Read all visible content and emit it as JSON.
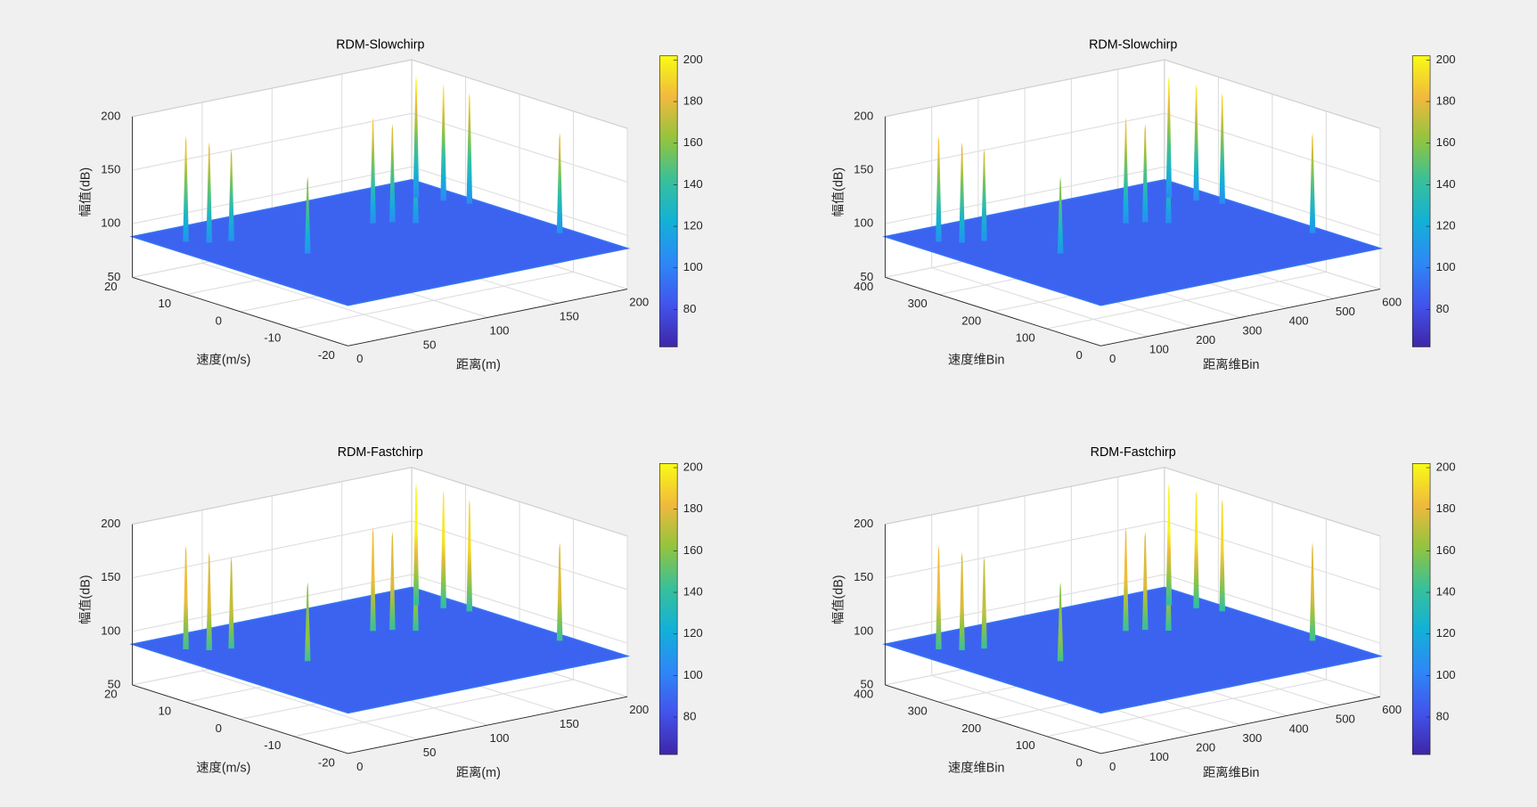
{
  "chart_data": [
    {
      "type": "surface3d",
      "title": "RDM-Slowchirp",
      "xlabel": "距离(m)",
      "ylabel": "速度(m/s)",
      "zlabel": "幅值(dB)",
      "xlim": [
        0,
        200
      ],
      "xticks": [
        0,
        50,
        100,
        150,
        200
      ],
      "ylim": [
        -20,
        20
      ],
      "yticks": [
        -20,
        -10,
        0,
        10,
        20
      ],
      "zlim": [
        50,
        200
      ],
      "zticks": [
        50,
        100,
        150,
        200
      ],
      "grid": true,
      "floor": 88,
      "peaks": {
        "x": [
          19,
          28,
          40,
          56,
          126,
          136,
          145,
          180,
          188,
          195,
          194
        ],
        "y": [
          15,
          13,
          12,
          2,
          8,
          7,
          5,
          14,
          11,
          8,
          -9
        ],
        "z": [
          185,
          180,
          172,
          158,
          185,
          178,
          170,
          200,
          195,
          190,
          180
        ]
      },
      "colormap": [
        "#3e26a8",
        "#4253ec",
        "#2e87f7",
        "#12b0d8",
        "#38c09a",
        "#93c43e",
        "#f0b93d",
        "#f9fb15"
      ],
      "clim": [
        62,
        202
      ],
      "cticks": [
        80,
        100,
        120,
        140,
        160,
        180,
        200
      ]
    },
    {
      "type": "surface3d",
      "title": "RDM-Slowchirp",
      "xlabel": "距离维Bin",
      "ylabel": "速度维Bin",
      "zlabel": "幅值(dB)",
      "xlim": [
        0,
        600
      ],
      "xticks": [
        0,
        100,
        200,
        300,
        400,
        500,
        600
      ],
      "ylim": [
        0,
        400
      ],
      "yticks": [
        0,
        100,
        200,
        300,
        400
      ],
      "zlim": [
        50,
        200
      ],
      "zticks": [
        50,
        100,
        150,
        200
      ],
      "grid": true,
      "floor": 88,
      "peaks": {
        "x": [
          57,
          84,
          120,
          168,
          378,
          408,
          435,
          540,
          564,
          585,
          582
        ],
        "y": [
          350,
          330,
          320,
          220,
          280,
          270,
          250,
          340,
          310,
          280,
          110
        ],
        "z": [
          185,
          180,
          172,
          158,
          185,
          178,
          170,
          200,
          195,
          190,
          180
        ]
      },
      "colormap": [
        "#3e26a8",
        "#4253ec",
        "#2e87f7",
        "#12b0d8",
        "#38c09a",
        "#93c43e",
        "#f0b93d",
        "#f9fb15"
      ],
      "clim": [
        62,
        202
      ],
      "cticks": [
        80,
        100,
        120,
        140,
        160,
        180,
        200
      ]
    },
    {
      "type": "surface3d",
      "title": "RDM-Fastchirp",
      "xlabel": "距离(m)",
      "ylabel": "速度(m/s)",
      "zlabel": "幅值(dB)",
      "xlim": [
        0,
        200
      ],
      "xticks": [
        0,
        50,
        100,
        150,
        200
      ],
      "ylim": [
        -20,
        20
      ],
      "yticks": [
        -20,
        -10,
        0,
        10,
        20
      ],
      "zlim": [
        50,
        200
      ],
      "zticks": [
        50,
        100,
        150,
        200
      ],
      "grid": true,
      "floor": 88,
      "peaks": {
        "x": [
          19,
          28,
          40,
          56,
          126,
          136,
          145,
          180,
          188,
          195,
          194
        ],
        "y": [
          15,
          13,
          12,
          2,
          8,
          7,
          5,
          14,
          11,
          8,
          -9
        ],
        "z": [
          183,
          178,
          172,
          160,
          183,
          178,
          170,
          200,
          196,
          191,
          178
        ]
      },
      "colormap": [
        "#3e26a8",
        "#4253ec",
        "#2e87f7",
        "#12b0d8",
        "#38c09a",
        "#93c43e",
        "#f0b93d",
        "#f9fb15"
      ],
      "clim": [
        62,
        202
      ],
      "cticks": [
        80,
        100,
        120,
        140,
        160,
        180,
        200
      ]
    },
    {
      "type": "surface3d",
      "title": "RDM-Fastchirp",
      "xlabel": "距离维Bin",
      "ylabel": "速度维Bin",
      "zlabel": "幅值(dB)",
      "xlim": [
        0,
        600
      ],
      "xticks": [
        0,
        100,
        200,
        300,
        400,
        500,
        600
      ],
      "ylim": [
        0,
        400
      ],
      "yticks": [
        0,
        100,
        200,
        300,
        400
      ],
      "zlim": [
        50,
        200
      ],
      "zticks": [
        50,
        100,
        150,
        200
      ],
      "grid": true,
      "floor": 88,
      "peaks": {
        "x": [
          57,
          84,
          120,
          168,
          378,
          408,
          435,
          540,
          564,
          585,
          582
        ],
        "y": [
          350,
          330,
          320,
          220,
          280,
          270,
          250,
          340,
          310,
          280,
          110
        ],
        "z": [
          183,
          178,
          172,
          160,
          183,
          178,
          170,
          200,
          196,
          191,
          178
        ]
      },
      "colormap": [
        "#3e26a8",
        "#4253ec",
        "#2e87f7",
        "#12b0d8",
        "#38c09a",
        "#93c43e",
        "#f0b93d",
        "#f9fb15"
      ],
      "clim": [
        62,
        202
      ],
      "cticks": [
        80,
        100,
        120,
        140,
        160,
        180,
        200
      ]
    }
  ]
}
